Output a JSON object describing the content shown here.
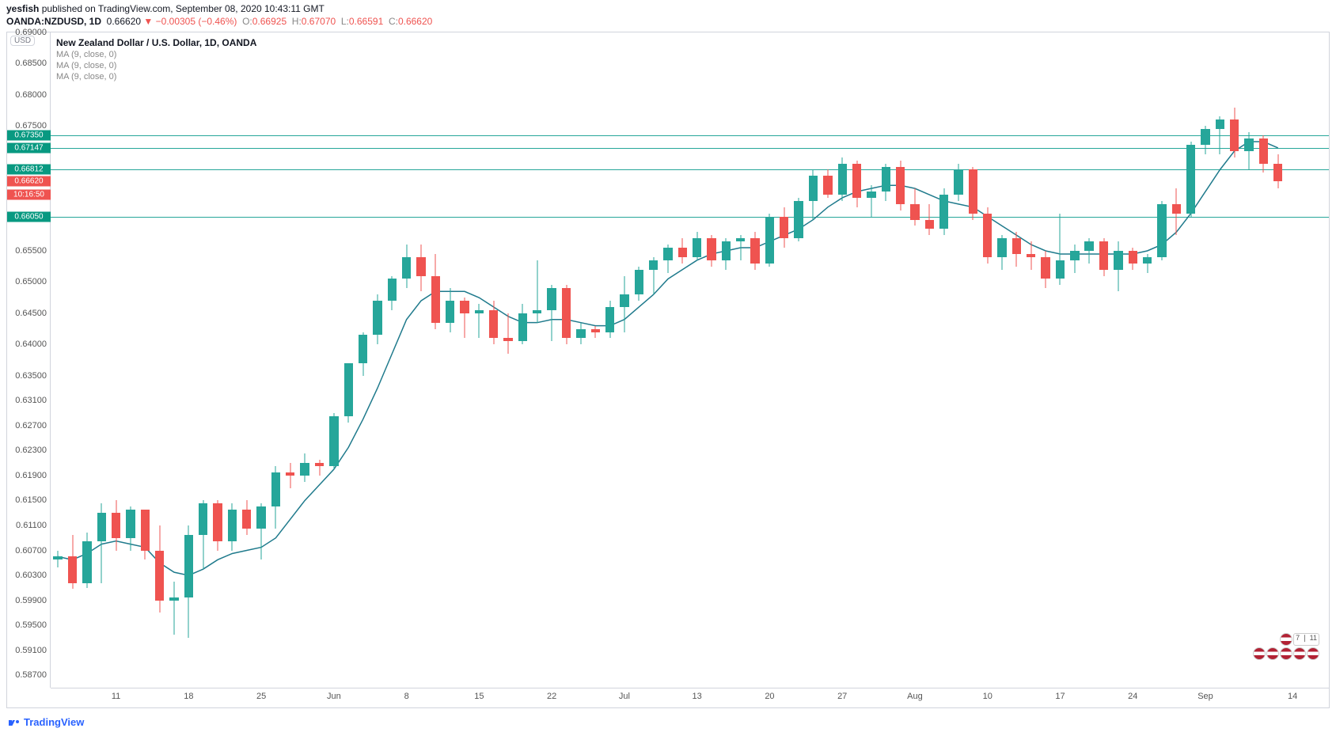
{
  "header": {
    "author": "yesfish",
    "published_on": " published on TradingView.com, ",
    "date": "September 08, 2020 10:43:11 GMT",
    "symbol": "OANDA:NZDUSD, 1D",
    "last": "0.66620",
    "arrow": "▼",
    "change": "−0.00305 (−0.46%)",
    "o_label": "O:",
    "o": "0.66925",
    "h_label": "H:",
    "h": "0.67070",
    "l_label": "L:",
    "l": "0.66591",
    "c_label": "C:",
    "c": "0.66620"
  },
  "legend": {
    "title": "New Zealand Dollar / U.S. Dollar, 1D, OANDA",
    "ma1": "MA (9, close, 0)",
    "ma2": "MA (9, close, 0)",
    "ma3": "MA (9, close, 0)"
  },
  "currency_badge": "USD",
  "chart": {
    "ymin": 0.585,
    "ymax": 0.69,
    "yticks": [
      0.69,
      0.685,
      0.68,
      0.675,
      0.655,
      0.65,
      0.645,
      0.64,
      0.635,
      0.631,
      0.627,
      0.623,
      0.619,
      0.615,
      0.611,
      0.607,
      0.603,
      0.599,
      0.595,
      0.591,
      0.587
    ],
    "hlines": [
      {
        "y": 0.6735,
        "color": "#26a69a"
      },
      {
        "y": 0.67147,
        "color": "#26a69a"
      },
      {
        "y": 0.66812,
        "color": "#26a69a"
      },
      {
        "y": 0.6605,
        "color": "#26a69a"
      }
    ],
    "price_tags": [
      {
        "y": 0.6735,
        "text": "0.67350",
        "bg": "#089981"
      },
      {
        "y": 0.67147,
        "text": "0.67147",
        "bg": "#089981"
      },
      {
        "y": 0.66812,
        "text": "0.66812",
        "bg": "#089981"
      },
      {
        "y": 0.6662,
        "text": "0.66620",
        "bg": "#ef5350"
      },
      {
        "y": 0.664,
        "text": "10:16:50",
        "bg": "#ef5350"
      },
      {
        "y": 0.6605,
        "text": "0.66050",
        "bg": "#089981"
      }
    ],
    "xlabels": [
      {
        "idx": 4,
        "label": "11"
      },
      {
        "idx": 9,
        "label": "18"
      },
      {
        "idx": 14,
        "label": "25"
      },
      {
        "idx": 19,
        "label": "Jun"
      },
      {
        "idx": 24,
        "label": "8"
      },
      {
        "idx": 29,
        "label": "15"
      },
      {
        "idx": 34,
        "label": "22"
      },
      {
        "idx": 39,
        "label": "Jul"
      },
      {
        "idx": 44,
        "label": "13"
      },
      {
        "idx": 49,
        "label": "20"
      },
      {
        "idx": 54,
        "label": "27"
      },
      {
        "idx": 59,
        "label": "Aug"
      },
      {
        "idx": 64,
        "label": "10"
      },
      {
        "idx": 69,
        "label": "17"
      },
      {
        "idx": 74,
        "label": "24"
      },
      {
        "idx": 79,
        "label": "Sep"
      },
      {
        "idx": 85,
        "label": "14"
      }
    ],
    "n_slots": 88,
    "candle_width_ratio": 0.62,
    "up_color": "#26a69a",
    "down_color": "#ef5350",
    "ma_color": "#1f7a8c",
    "ma_width": 1.5,
    "candles": [
      {
        "o": 0.6055,
        "h": 0.607,
        "l": 0.6043,
        "c": 0.606
      },
      {
        "o": 0.606,
        "h": 0.6095,
        "l": 0.6008,
        "c": 0.6018
      },
      {
        "o": 0.6018,
        "h": 0.6098,
        "l": 0.601,
        "c": 0.6085
      },
      {
        "o": 0.6085,
        "h": 0.6145,
        "l": 0.6018,
        "c": 0.613
      },
      {
        "o": 0.613,
        "h": 0.615,
        "l": 0.607,
        "c": 0.609
      },
      {
        "o": 0.609,
        "h": 0.614,
        "l": 0.607,
        "c": 0.6135
      },
      {
        "o": 0.6135,
        "h": 0.6135,
        "l": 0.6055,
        "c": 0.607
      },
      {
        "o": 0.607,
        "h": 0.611,
        "l": 0.597,
        "c": 0.599
      },
      {
        "o": 0.599,
        "h": 0.602,
        "l": 0.5935,
        "c": 0.5995
      },
      {
        "o": 0.5995,
        "h": 0.611,
        "l": 0.593,
        "c": 0.6095
      },
      {
        "o": 0.6095,
        "h": 0.615,
        "l": 0.604,
        "c": 0.6145
      },
      {
        "o": 0.6145,
        "h": 0.615,
        "l": 0.607,
        "c": 0.6085
      },
      {
        "o": 0.6085,
        "h": 0.6145,
        "l": 0.607,
        "c": 0.6135
      },
      {
        "o": 0.6135,
        "h": 0.615,
        "l": 0.6095,
        "c": 0.6105
      },
      {
        "o": 0.6105,
        "h": 0.6145,
        "l": 0.6055,
        "c": 0.614
      },
      {
        "o": 0.614,
        "h": 0.6205,
        "l": 0.6105,
        "c": 0.6195
      },
      {
        "o": 0.6195,
        "h": 0.621,
        "l": 0.617,
        "c": 0.619
      },
      {
        "o": 0.619,
        "h": 0.6225,
        "l": 0.618,
        "c": 0.621
      },
      {
        "o": 0.621,
        "h": 0.6215,
        "l": 0.619,
        "c": 0.6205
      },
      {
        "o": 0.6205,
        "h": 0.629,
        "l": 0.62,
        "c": 0.6285
      },
      {
        "o": 0.6285,
        "h": 0.637,
        "l": 0.6275,
        "c": 0.637
      },
      {
        "o": 0.637,
        "h": 0.642,
        "l": 0.635,
        "c": 0.6415
      },
      {
        "o": 0.6415,
        "h": 0.648,
        "l": 0.64,
        "c": 0.647
      },
      {
        "o": 0.647,
        "h": 0.651,
        "l": 0.6455,
        "c": 0.6505
      },
      {
        "o": 0.6505,
        "h": 0.656,
        "l": 0.649,
        "c": 0.654
      },
      {
        "o": 0.654,
        "h": 0.656,
        "l": 0.6485,
        "c": 0.651
      },
      {
        "o": 0.651,
        "h": 0.6545,
        "l": 0.6425,
        "c": 0.6435
      },
      {
        "o": 0.6435,
        "h": 0.649,
        "l": 0.642,
        "c": 0.647
      },
      {
        "o": 0.647,
        "h": 0.6475,
        "l": 0.641,
        "c": 0.645
      },
      {
        "o": 0.645,
        "h": 0.6465,
        "l": 0.641,
        "c": 0.6455
      },
      {
        "o": 0.6455,
        "h": 0.647,
        "l": 0.64,
        "c": 0.641
      },
      {
        "o": 0.641,
        "h": 0.645,
        "l": 0.6385,
        "c": 0.6405
      },
      {
        "o": 0.6405,
        "h": 0.6465,
        "l": 0.64,
        "c": 0.645
      },
      {
        "o": 0.645,
        "h": 0.6535,
        "l": 0.6435,
        "c": 0.6455
      },
      {
        "o": 0.6455,
        "h": 0.6495,
        "l": 0.6405,
        "c": 0.649
      },
      {
        "o": 0.649,
        "h": 0.6495,
        "l": 0.64,
        "c": 0.641
      },
      {
        "o": 0.641,
        "h": 0.6435,
        "l": 0.64,
        "c": 0.6425
      },
      {
        "o": 0.6425,
        "h": 0.643,
        "l": 0.641,
        "c": 0.642
      },
      {
        "o": 0.642,
        "h": 0.647,
        "l": 0.641,
        "c": 0.646
      },
      {
        "o": 0.646,
        "h": 0.651,
        "l": 0.642,
        "c": 0.648
      },
      {
        "o": 0.648,
        "h": 0.6525,
        "l": 0.647,
        "c": 0.652
      },
      {
        "o": 0.652,
        "h": 0.654,
        "l": 0.648,
        "c": 0.6535
      },
      {
        "o": 0.6535,
        "h": 0.656,
        "l": 0.6515,
        "c": 0.6555
      },
      {
        "o": 0.6555,
        "h": 0.657,
        "l": 0.653,
        "c": 0.654
      },
      {
        "o": 0.654,
        "h": 0.658,
        "l": 0.6535,
        "c": 0.657
      },
      {
        "o": 0.657,
        "h": 0.6575,
        "l": 0.6525,
        "c": 0.6535
      },
      {
        "o": 0.6535,
        "h": 0.657,
        "l": 0.652,
        "c": 0.6565
      },
      {
        "o": 0.6565,
        "h": 0.6575,
        "l": 0.6535,
        "c": 0.657
      },
      {
        "o": 0.657,
        "h": 0.658,
        "l": 0.652,
        "c": 0.653
      },
      {
        "o": 0.653,
        "h": 0.661,
        "l": 0.6525,
        "c": 0.6605
      },
      {
        "o": 0.6605,
        "h": 0.662,
        "l": 0.6555,
        "c": 0.657
      },
      {
        "o": 0.657,
        "h": 0.6635,
        "l": 0.6565,
        "c": 0.663
      },
      {
        "o": 0.663,
        "h": 0.668,
        "l": 0.66,
        "c": 0.667
      },
      {
        "o": 0.667,
        "h": 0.668,
        "l": 0.6635,
        "c": 0.664
      },
      {
        "o": 0.664,
        "h": 0.67,
        "l": 0.663,
        "c": 0.669
      },
      {
        "o": 0.669,
        "h": 0.6695,
        "l": 0.662,
        "c": 0.6635
      },
      {
        "o": 0.6635,
        "h": 0.6655,
        "l": 0.6605,
        "c": 0.6645
      },
      {
        "o": 0.6645,
        "h": 0.669,
        "l": 0.663,
        "c": 0.6685
      },
      {
        "o": 0.6685,
        "h": 0.6695,
        "l": 0.6615,
        "c": 0.6625
      },
      {
        "o": 0.6625,
        "h": 0.665,
        "l": 0.659,
        "c": 0.66
      },
      {
        "o": 0.66,
        "h": 0.6625,
        "l": 0.6575,
        "c": 0.6585
      },
      {
        "o": 0.6585,
        "h": 0.665,
        "l": 0.6575,
        "c": 0.664
      },
      {
        "o": 0.664,
        "h": 0.669,
        "l": 0.663,
        "c": 0.668
      },
      {
        "o": 0.668,
        "h": 0.6685,
        "l": 0.66,
        "c": 0.661
      },
      {
        "o": 0.661,
        "h": 0.662,
        "l": 0.653,
        "c": 0.654
      },
      {
        "o": 0.654,
        "h": 0.6575,
        "l": 0.652,
        "c": 0.657
      },
      {
        "o": 0.657,
        "h": 0.658,
        "l": 0.6525,
        "c": 0.6545
      },
      {
        "o": 0.6545,
        "h": 0.6565,
        "l": 0.652,
        "c": 0.654
      },
      {
        "o": 0.654,
        "h": 0.655,
        "l": 0.649,
        "c": 0.6505
      },
      {
        "o": 0.6505,
        "h": 0.661,
        "l": 0.6495,
        "c": 0.6535
      },
      {
        "o": 0.6535,
        "h": 0.656,
        "l": 0.6515,
        "c": 0.655
      },
      {
        "o": 0.655,
        "h": 0.657,
        "l": 0.653,
        "c": 0.6565
      },
      {
        "o": 0.6565,
        "h": 0.657,
        "l": 0.651,
        "c": 0.652
      },
      {
        "o": 0.652,
        "h": 0.6565,
        "l": 0.6485,
        "c": 0.655
      },
      {
        "o": 0.655,
        "h": 0.6555,
        "l": 0.652,
        "c": 0.653
      },
      {
        "o": 0.653,
        "h": 0.6545,
        "l": 0.6515,
        "c": 0.654
      },
      {
        "o": 0.654,
        "h": 0.663,
        "l": 0.6535,
        "c": 0.6625
      },
      {
        "o": 0.6625,
        "h": 0.665,
        "l": 0.6575,
        "c": 0.661
      },
      {
        "o": 0.661,
        "h": 0.6725,
        "l": 0.6605,
        "c": 0.672
      },
      {
        "o": 0.672,
        "h": 0.675,
        "l": 0.6705,
        "c": 0.6745
      },
      {
        "o": 0.6745,
        "h": 0.6765,
        "l": 0.6705,
        "c": 0.676
      },
      {
        "o": 0.676,
        "h": 0.678,
        "l": 0.67,
        "c": 0.671
      },
      {
        "o": 0.671,
        "h": 0.674,
        "l": 0.668,
        "c": 0.673
      },
      {
        "o": 0.673,
        "h": 0.6735,
        "l": 0.6675,
        "c": 0.669
      },
      {
        "o": 0.669,
        "h": 0.6705,
        "l": 0.665,
        "c": 0.6662
      }
    ],
    "ma": [
      0.606,
      0.6055,
      0.6065,
      0.608,
      0.6085,
      0.608,
      0.6075,
      0.605,
      0.6035,
      0.603,
      0.604,
      0.6055,
      0.6065,
      0.607,
      0.6075,
      0.609,
      0.612,
      0.615,
      0.6175,
      0.62,
      0.6235,
      0.628,
      0.633,
      0.6385,
      0.644,
      0.647,
      0.6485,
      0.6485,
      0.6485,
      0.6475,
      0.646,
      0.6445,
      0.6435,
      0.6435,
      0.644,
      0.644,
      0.6435,
      0.643,
      0.643,
      0.644,
      0.646,
      0.648,
      0.6505,
      0.652,
      0.6535,
      0.6545,
      0.655,
      0.6555,
      0.6555,
      0.6565,
      0.6575,
      0.6585,
      0.66,
      0.662,
      0.6635,
      0.6645,
      0.665,
      0.6655,
      0.6655,
      0.665,
      0.664,
      0.663,
      0.6625,
      0.662,
      0.6605,
      0.659,
      0.6575,
      0.656,
      0.655,
      0.6545,
      0.6545,
      0.6545,
      0.6545,
      0.6545,
      0.6545,
      0.655,
      0.656,
      0.658,
      0.661,
      0.6645,
      0.668,
      0.671,
      0.6725,
      0.6725,
      0.6715
    ]
  },
  "footer": {
    "brand": "TradingView"
  },
  "badge_711": "7 ❘ 11"
}
